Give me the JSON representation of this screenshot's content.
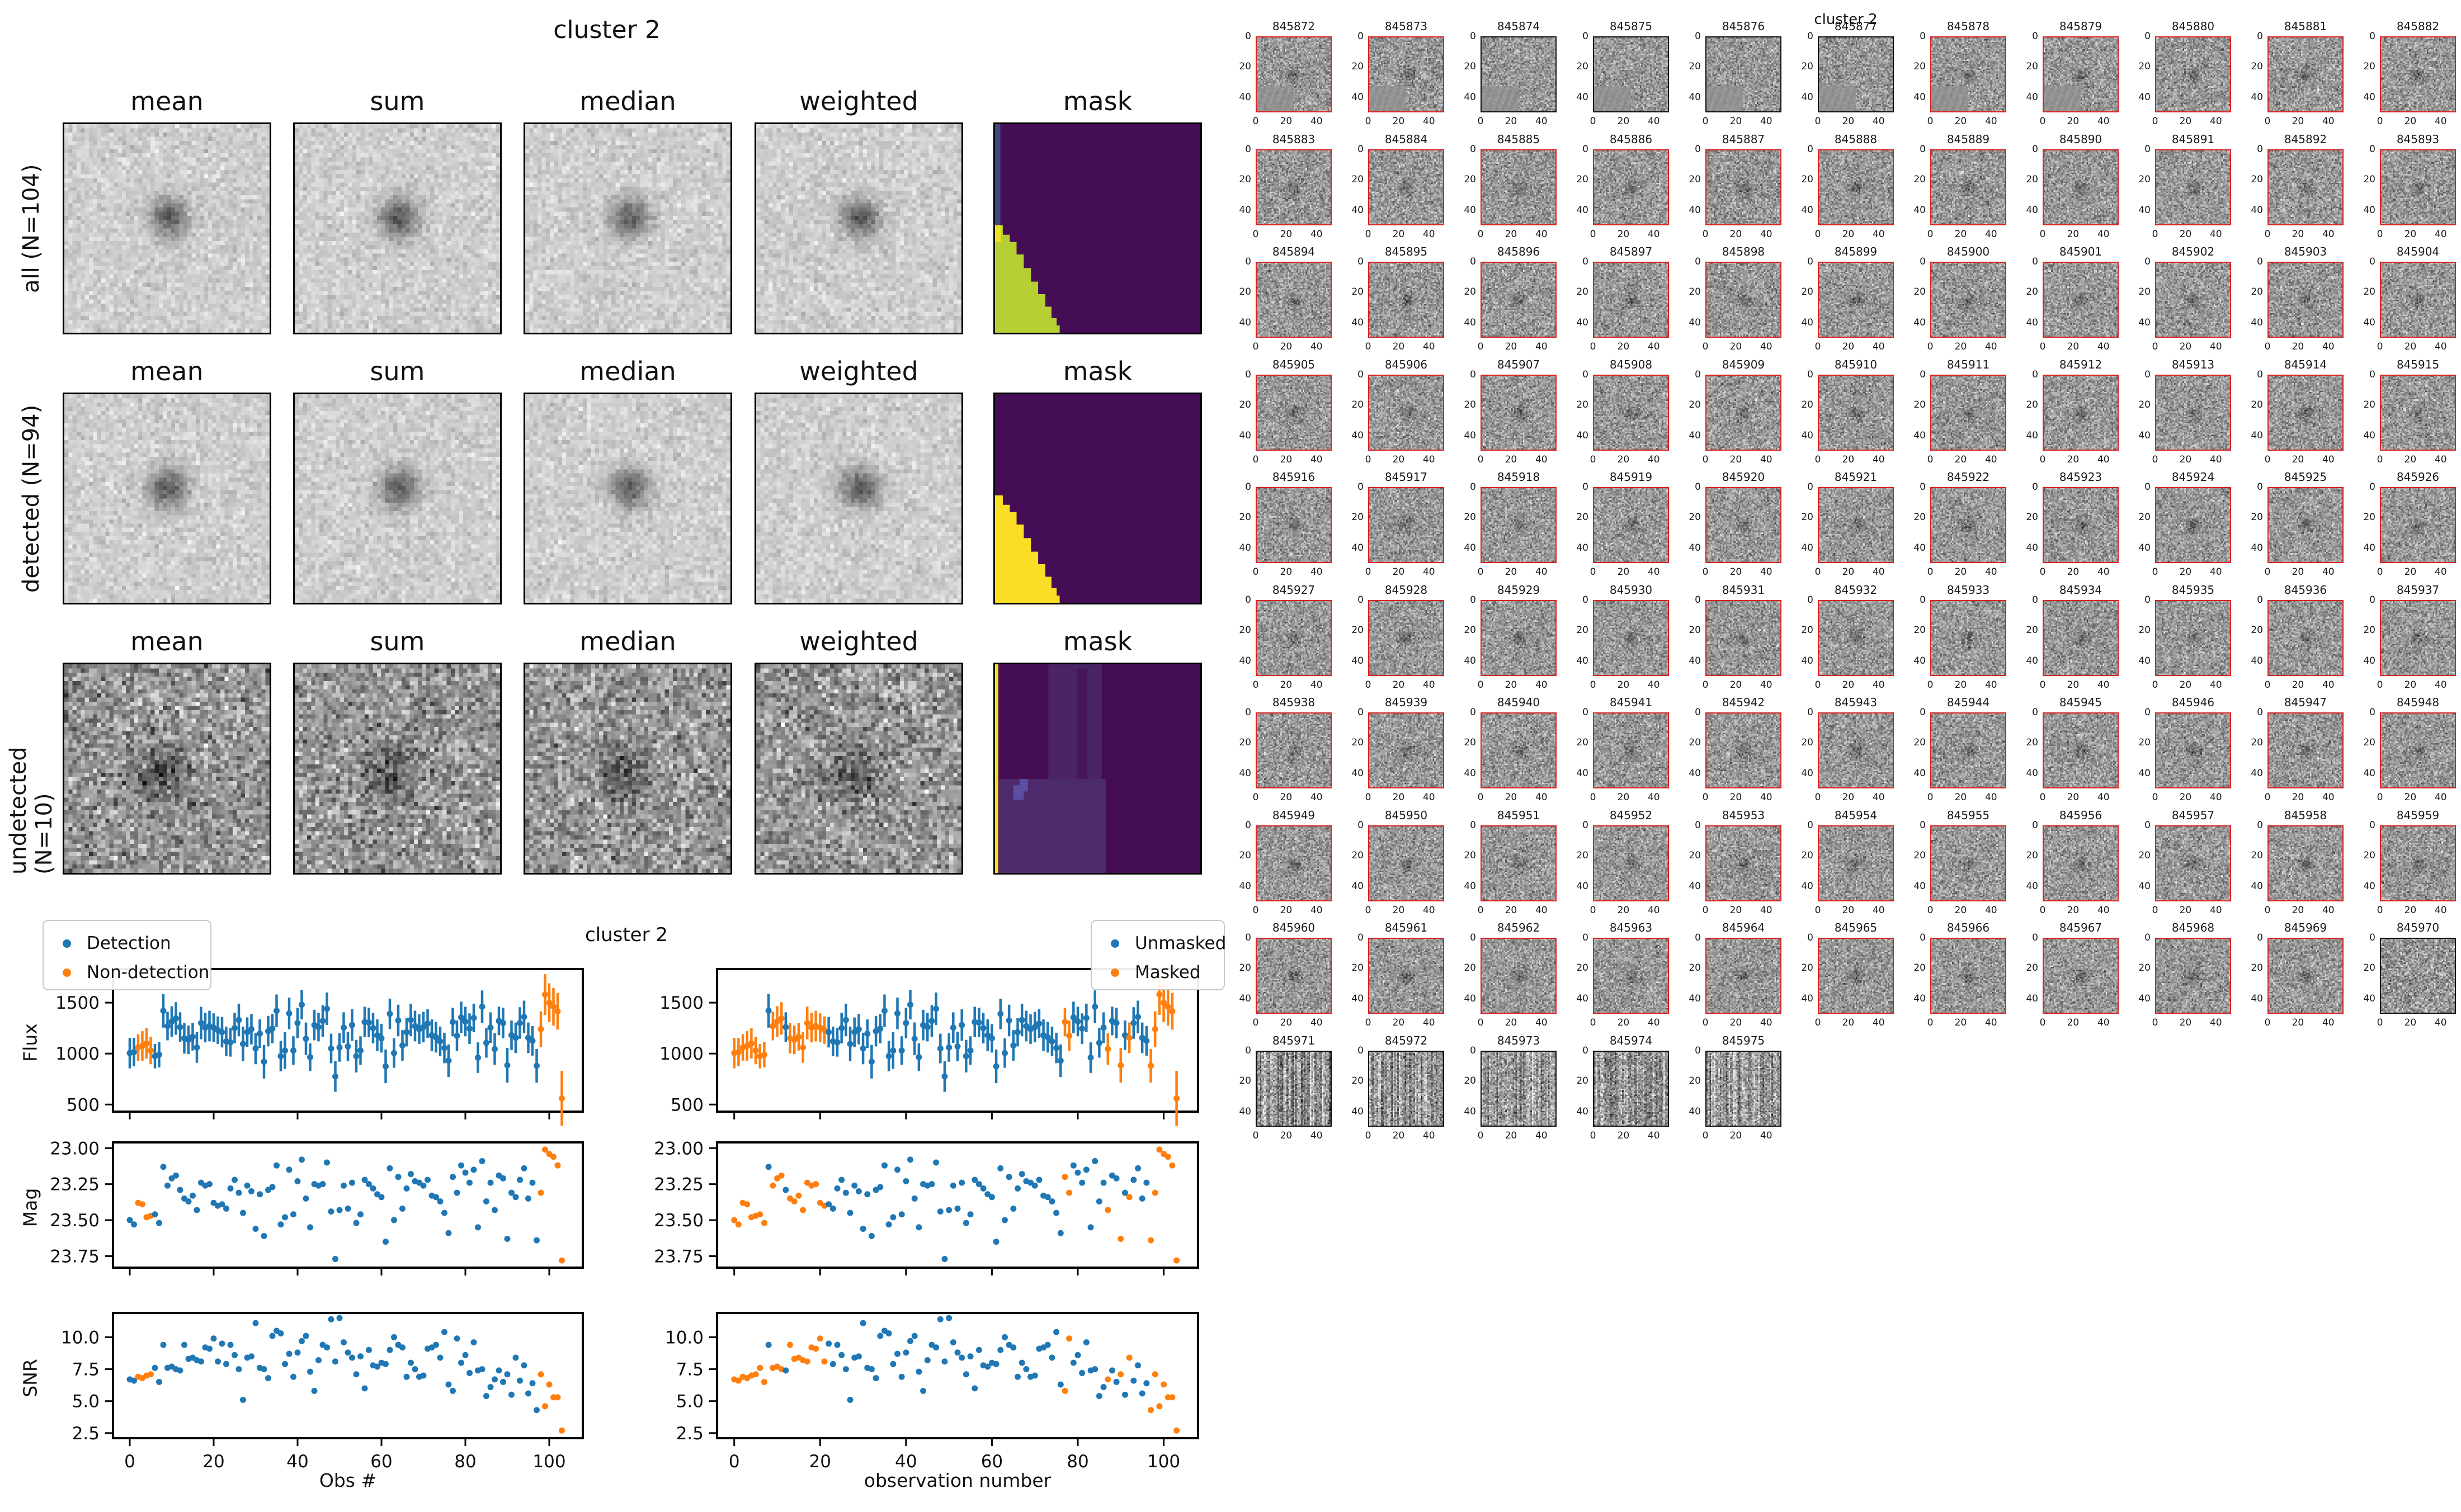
{
  "cutout_grid": {
    "title": "cluster 2",
    "column_headers": [
      "mean",
      "sum",
      "median",
      "weighted",
      "mask"
    ],
    "rows": [
      {
        "label": "all (N=104)",
        "mask_style": "green_wedge"
      },
      {
        "label": "detected (N=94)",
        "mask_style": "yellow_wedge"
      },
      {
        "label": "undetected (N=10)",
        "mask_style": "purple_patches"
      }
    ]
  },
  "light_curves": {
    "title": "cluster 2",
    "ylabels": [
      "Flux",
      "Mag",
      "SNR"
    ],
    "left_panel": {
      "legend": [
        {
          "label": "Detection",
          "color": "#1f77b4"
        },
        {
          "label": "Non-detection",
          "color": "#ff7f0e"
        }
      ],
      "xlabel": "Obs #"
    },
    "right_panel": {
      "legend": [
        {
          "label": "Unmasked",
          "color": "#1f77b4"
        },
        {
          "label": "Masked",
          "color": "#ff7f0e"
        }
      ],
      "xlabel": "observation number"
    },
    "yticks": {
      "flux": [
        "500",
        "1000",
        "1500"
      ],
      "mag": [
        "23.00",
        "23.25",
        "23.50",
        "23.75"
      ],
      "snr": [
        "2.5",
        "5.0",
        "7.5",
        "10.0"
      ]
    },
    "xticks": [
      "0",
      "20",
      "40",
      "60",
      "80",
      "100"
    ]
  },
  "chart_data": {
    "type": "scatter",
    "title": "cluster 2",
    "xlabel_left": "Obs #",
    "xlabel_right": "observation number",
    "xlim": [
      -4,
      108
    ],
    "flux_ylim": [
      430,
      1830
    ],
    "mag_ylim": [
      23.83,
      22.96
    ],
    "snr_ylim": [
      2.1,
      11.9
    ],
    "flux": [
      1005,
      1015,
      1060,
      1075,
      1100,
      1030,
      975,
      990,
      1420,
      1270,
      1315,
      1345,
      1260,
      1150,
      1135,
      1165,
      1060,
      1300,
      1255,
      1270,
      1255,
      1230,
      1210,
      1120,
      1110,
      1250,
      1330,
      1095,
      1210,
      1240,
      1050,
      1195,
      920,
      1220,
      1245,
      1420,
      975,
      1030,
      1395,
      1030,
      1300,
      1480,
      1145,
      965,
      1280,
      1260,
      1320,
      1440,
      1050,
      775,
      1060,
      1255,
      1070,
      1280,
      975,
      1030,
      1310,
      1305,
      1250,
      1180,
      1150,
      875,
      1390,
      1005,
      1325,
      1080,
      1210,
      1330,
      1270,
      1240,
      1260,
      1295,
      1180,
      1160,
      1120,
      1055,
      930,
      1310,
      1175,
      1355,
      1315,
      1245,
      1350,
      960,
      1460,
      1105,
      1255,
      1045,
      1320,
      1300,
      885,
      1180,
      1155,
      1300,
      1360,
      1155,
      1125,
      880,
      1240,
      1580,
      1500,
      1460,
      1415,
      560
    ],
    "flux_err": [
      150,
      140,
      130,
      145,
      150,
      135,
      120,
      125,
      165,
      140,
      150,
      160,
      145,
      150,
      140,
      135,
      150,
      160,
      145,
      150,
      140,
      135,
      150,
      145,
      140,
      150,
      160,
      170,
      145,
      150,
      155,
      140,
      165,
      150,
      145,
      160,
      150,
      180,
      155,
      140,
      150,
      145,
      160,
      135,
      150,
      140,
      155,
      160,
      145,
      150,
      140,
      150,
      145,
      155,
      160,
      140,
      150,
      145,
      150,
      155,
      140,
      165,
      150,
      145,
      155,
      150,
      140,
      160,
      150,
      145,
      150,
      140,
      155,
      150,
      145,
      150,
      160,
      140,
      150,
      155,
      145,
      150,
      140,
      150,
      160,
      145,
      150,
      155,
      140,
      150,
      170,
      145,
      150,
      155,
      160,
      150,
      145,
      165,
      175,
      200,
      190,
      185,
      180,
      270
    ],
    "mag": [
      23.5,
      23.53,
      23.38,
      23.39,
      23.48,
      23.47,
      23.46,
      23.52,
      23.13,
      23.26,
      23.21,
      23.19,
      23.29,
      23.35,
      23.37,
      23.33,
      23.43,
      23.24,
      23.26,
      23.25,
      23.38,
      23.4,
      23.39,
      23.42,
      23.28,
      23.22,
      23.31,
      23.45,
      23.26,
      23.3,
      23.56,
      23.32,
      23.61,
      23.29,
      23.27,
      23.12,
      23.53,
      23.48,
      23.15,
      23.46,
      23.23,
      23.08,
      23.35,
      23.55,
      23.25,
      23.26,
      23.25,
      23.1,
      23.44,
      23.77,
      23.43,
      23.26,
      23.42,
      23.24,
      23.52,
      23.46,
      23.22,
      23.25,
      23.28,
      23.32,
      23.34,
      23.65,
      23.14,
      23.5,
      23.2,
      23.42,
      23.28,
      23.18,
      23.23,
      23.24,
      23.26,
      23.22,
      23.33,
      23.34,
      23.37,
      23.45,
      23.59,
      23.2,
      23.31,
      23.12,
      23.17,
      23.24,
      23.15,
      23.55,
      23.09,
      23.37,
      23.24,
      23.43,
      23.19,
      23.21,
      23.63,
      23.31,
      23.34,
      23.22,
      23.14,
      23.35,
      23.24,
      23.64,
      23.31,
      23.01,
      23.04,
      23.06,
      23.12,
      23.78
    ],
    "snr": [
      6.7,
      6.6,
      6.9,
      6.8,
      7.0,
      7.1,
      7.6,
      6.5,
      9.4,
      7.6,
      7.7,
      7.5,
      7.4,
      9.4,
      8.3,
      8.4,
      8.2,
      8.1,
      9.2,
      9.1,
      9.9,
      8.1,
      9.5,
      7.9,
      9.4,
      8.6,
      7.5,
      5.1,
      8.4,
      8.5,
      11.1,
      7.6,
      7.5,
      6.8,
      10.1,
      10.5,
      10.3,
      7.9,
      8.7,
      6.9,
      8.8,
      9.7,
      10.1,
      7.3,
      5.8,
      8.2,
      9.4,
      9.2,
      11.4,
      8.1,
      11.5,
      9.6,
      8.8,
      8.4,
      7.1,
      8.5,
      6.0,
      9.0,
      7.8,
      7.7,
      8.0,
      7.9,
      9.0,
      10.0,
      9.4,
      9.2,
      6.9,
      8.0,
      7.5,
      6.9,
      7.0,
      9.1,
      9.2,
      9.4,
      8.4,
      10.4,
      6.3,
      5.8,
      9.9,
      8.0,
      8.6,
      7.2,
      9.6,
      7.4,
      7.5,
      5.4,
      6.1,
      6.7,
      7.4,
      6.5,
      7.1,
      5.5,
      8.4,
      6.6,
      7.8,
      5.6,
      6.4,
      4.3,
      7.1,
      4.6,
      6.3,
      5.3,
      5.3,
      2.7
    ],
    "non_detection_indices": [
      2,
      3,
      4,
      5,
      98,
      99,
      100,
      101,
      102,
      103
    ],
    "masked_indices": [
      0,
      1,
      2,
      3,
      4,
      5,
      6,
      7,
      9,
      10,
      11,
      13,
      14,
      15,
      16,
      17,
      18,
      19,
      20,
      21,
      77,
      78,
      87,
      90,
      92,
      97,
      98,
      99,
      100,
      101,
      102,
      103
    ]
  },
  "thumbnail_grid": {
    "suptitle": "cluster 2",
    "columns": 11,
    "ids": [
      845872,
      845873,
      845874,
      845875,
      845876,
      845877,
      845878,
      845879,
      845880,
      845881,
      845882,
      845883,
      845884,
      845885,
      845886,
      845887,
      845888,
      845889,
      845890,
      845891,
      845892,
      845893,
      845894,
      845895,
      845896,
      845897,
      845898,
      845899,
      845900,
      845901,
      845902,
      845903,
      845904,
      845905,
      845906,
      845907,
      845908,
      845909,
      845910,
      845911,
      845912,
      845913,
      845914,
      845915,
      845916,
      845917,
      845918,
      845919,
      845920,
      845921,
      845922,
      845923,
      845924,
      845925,
      845926,
      845927,
      845928,
      845929,
      845930,
      845931,
      845932,
      845933,
      845934,
      845935,
      845936,
      845937,
      845938,
      845939,
      845940,
      845941,
      845942,
      845943,
      845944,
      845945,
      845946,
      845947,
      845948,
      845949,
      845950,
      845951,
      845952,
      845953,
      845954,
      845955,
      845956,
      845957,
      845958,
      845959,
      845960,
      845961,
      845962,
      845963,
      845964,
      845965,
      845966,
      845967,
      845968,
      845969,
      845970,
      845971,
      845972,
      845973,
      845974,
      845975
    ],
    "non_detection_ids": [
      845874,
      845875,
      845876,
      845877,
      845970,
      845971,
      845972,
      845973,
      845974,
      845975
    ],
    "xticks": [
      "0",
      "20",
      "40"
    ],
    "yticks": [
      "0",
      "20",
      "40"
    ]
  },
  "colors": {
    "detection_blue": "#1f77b4",
    "non_detection_orange": "#ff7f0e",
    "mask_background": "#440d55",
    "mask_wedge_green": "#b8cf33",
    "mask_wedge_green_edge": "#e7e322",
    "mask_blue_strip": "#424579",
    "mask_wedge_yellow": "#fadd25",
    "mask_patch_light": "#4a2465",
    "mask_patch_lighter": "#4c2b6d",
    "mask_patch_blob": "#5a4fa0",
    "mask_left_stripe_yellow": "#f2e11d",
    "thumb_border_red": "#dd2222",
    "thumb_border_black": "#111111"
  }
}
